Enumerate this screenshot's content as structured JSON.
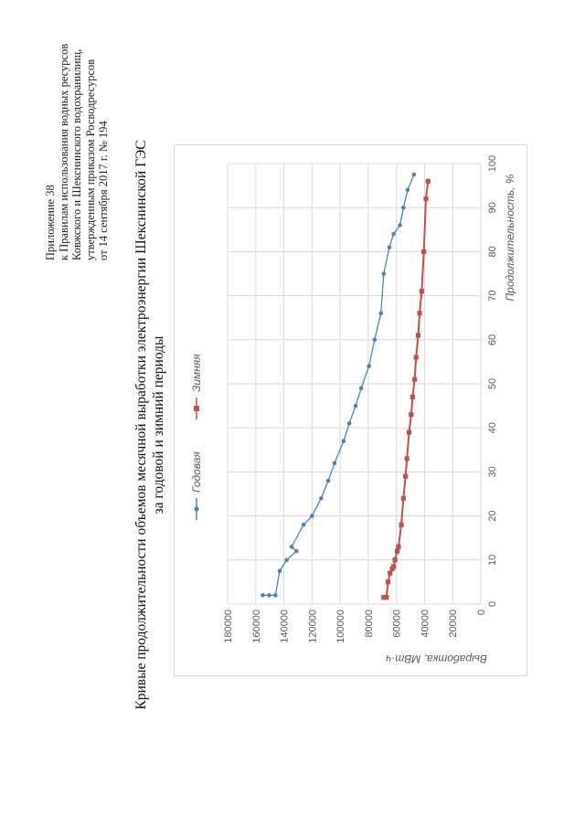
{
  "header": {
    "line1": "Приложение 38",
    "line2": "к Правилам использования водных ресурсов",
    "line3": "Ковжского и Шекснинского водохранилищ,",
    "line4": "утвержденным приказом Росводресурсов",
    "line5": "от 14 сентября 2017 г. № 194"
  },
  "title": {
    "line1": "Кривые продолжительности объемов месячной выработки электроэнергии Шекснинской ГЭС",
    "line2": "за годовой и зимний периоды"
  },
  "chart_data": {
    "type": "line",
    "xlabel": "Продолжительность, %",
    "ylabel": "Выработка, МВт·ч",
    "xlim": [
      0,
      100
    ],
    "ylim": [
      0,
      180000
    ],
    "xticks": [
      "0",
      "10",
      "20",
      "30",
      "40",
      "50",
      "60",
      "70",
      "80",
      "90",
      "100"
    ],
    "yticks": [
      "0",
      "20000",
      "40000",
      "60000",
      "80000",
      "100000",
      "120000",
      "140000",
      "160000",
      "180000"
    ],
    "grid": true,
    "legend_position": "top",
    "series": [
      {
        "name": "Годовая",
        "color": "#4f81bd",
        "marker": "circle",
        "points": [
          [
            2,
            155000
          ],
          [
            2,
            150500
          ],
          [
            2,
            146000
          ],
          [
            7.5,
            143000
          ],
          [
            10,
            138000
          ],
          [
            12,
            131000
          ],
          [
            13,
            134500
          ],
          [
            18,
            126000
          ],
          [
            20,
            120000
          ],
          [
            24,
            113500
          ],
          [
            28,
            108500
          ],
          [
            32,
            104000
          ],
          [
            37,
            97500
          ],
          [
            41,
            93500
          ],
          [
            45,
            89000
          ],
          [
            49,
            85000
          ],
          [
            54,
            79500
          ],
          [
            60,
            75500
          ],
          [
            66,
            71000
          ],
          [
            75,
            69000
          ],
          [
            81,
            65000
          ],
          [
            84,
            62000
          ],
          [
            86,
            57500
          ],
          [
            90,
            55000
          ],
          [
            94,
            52000
          ],
          [
            97.5,
            47500
          ]
        ]
      },
      {
        "name": "Зимняя",
        "color": "#c0504d",
        "marker": "square",
        "points": [
          [
            1.5,
            69000
          ],
          [
            1.5,
            68000
          ],
          [
            1.5,
            67000
          ],
          [
            5,
            66000
          ],
          [
            7,
            64500
          ],
          [
            8,
            63000
          ],
          [
            8.5,
            62000
          ],
          [
            10,
            61000
          ],
          [
            12,
            59500
          ],
          [
            13,
            58500
          ],
          [
            18,
            56500
          ],
          [
            24,
            55000
          ],
          [
            29,
            53500
          ],
          [
            33,
            52500
          ],
          [
            39,
            51000
          ],
          [
            43,
            49500
          ],
          [
            47,
            48500
          ],
          [
            51,
            47000
          ],
          [
            56,
            46000
          ],
          [
            61,
            44500
          ],
          [
            66,
            43500
          ],
          [
            71,
            42000
          ],
          [
            80,
            40500
          ],
          [
            92,
            39000
          ],
          [
            96,
            37500
          ]
        ]
      }
    ]
  }
}
